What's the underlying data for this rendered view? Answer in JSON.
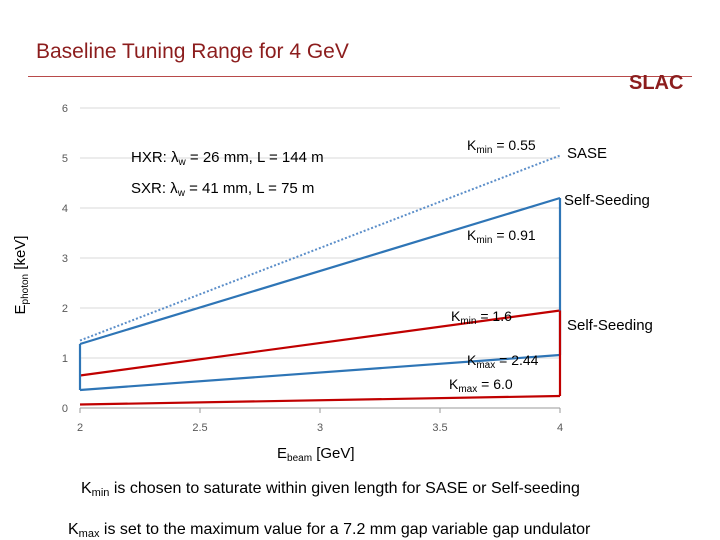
{
  "slide": {
    "title": "Baseline Tuning Range for 4 GeV",
    "logo": "SLAC",
    "notes": {
      "line1_pre": "K",
      "line1_sub": "min",
      "line1_post": " is chosen to saturate within given length for SASE or Self-seeding",
      "line2_pre": "K",
      "line2_sub": "max",
      "line2_post": " is set to the maximum value for a 7.2 mm gap variable gap undulator"
    }
  },
  "chart_data": {
    "type": "line",
    "title": "",
    "xlabel": {
      "main": "E",
      "sub": "beam",
      "unit": " [GeV]"
    },
    "ylabel": {
      "main": "E",
      "sub": "photon",
      "unit": " [keV]"
    },
    "xlim": [
      2,
      4
    ],
    "ylim": [
      0,
      6
    ],
    "xticks": [
      "2",
      "2.5",
      "3",
      "3.5",
      "4"
    ],
    "yticks": [
      "0",
      "1",
      "2",
      "3",
      "4",
      "5",
      "6"
    ],
    "grid": "horizontal",
    "series": [
      {
        "key": "hxr_sase",
        "color": "#5b8ec9",
        "dash": true,
        "x": [
          2,
          4
        ],
        "y": [
          1.35,
          5.05
        ]
      },
      {
        "key": "hxr_selfseed",
        "color": "#2e75b6",
        "dash": false,
        "x": [
          2,
          4
        ],
        "y": [
          1.28,
          4.2
        ]
      },
      {
        "key": "hxr_kmax",
        "color": "#2e75b6",
        "dash": false,
        "x": [
          2,
          4
        ],
        "y": [
          0.36,
          1.06
        ]
      },
      {
        "key": "sxr_kmin",
        "color": "#c00000",
        "dash": false,
        "x": [
          2,
          4
        ],
        "y": [
          0.65,
          1.95
        ]
      },
      {
        "key": "sxr_kmax",
        "color": "#c00000",
        "dash": false,
        "x": [
          2,
          4
        ],
        "y": [
          0.07,
          0.24
        ]
      }
    ],
    "vertical_edges": [
      {
        "key": "hxr_edge",
        "color": "#2e75b6",
        "x": 4,
        "y": [
          1.06,
          4.2
        ]
      },
      {
        "key": "sxr_edge",
        "color": "#c00000",
        "x": 4,
        "y": [
          0.24,
          1.95
        ]
      },
      {
        "key": "hxr_left",
        "color": "#2e75b6",
        "x": 2,
        "y": [
          0.36,
          1.28
        ]
      }
    ],
    "annotations": {
      "hxr": {
        "pre": "HXR: λ",
        "sub": "w",
        "post": " = 26 mm, L = 144 m"
      },
      "sxr": {
        "pre": "SXR: λ",
        "sub": "w",
        "post": " = 41 mm, L = 75 m"
      },
      "kmin_055": {
        "pre": "K",
        "sub": "min",
        "post": " = 0.55"
      },
      "kmin_091": {
        "pre": "K",
        "sub": "min",
        "post": " = 0.91"
      },
      "kmin_16": {
        "pre": "K",
        "sub": "min",
        "post": " = 1.6"
      },
      "kmax_244": {
        "pre": "K",
        "sub": "max",
        "post": " = 2.44"
      },
      "kmax_60": {
        "pre": "K",
        "sub": "max",
        "post": " = 6.0"
      },
      "sase": "SASE",
      "selfseed_hxr": "Self-Seeding",
      "selfseed_sxr": "Self-Seeding"
    },
    "colors": {
      "hxr_text": "#1f5f9e",
      "sxr_text": "#c00000",
      "kmin_blue": "#1f5f9e"
    }
  }
}
